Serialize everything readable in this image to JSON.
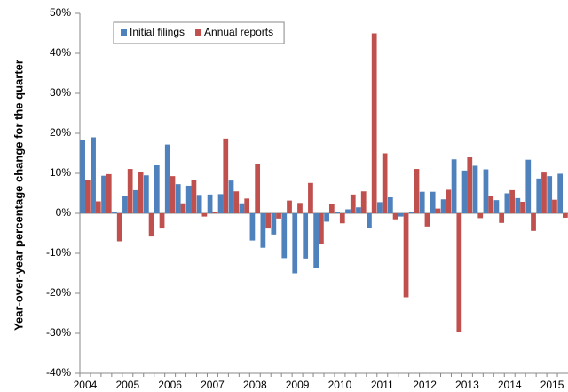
{
  "chart_data": {
    "type": "bar",
    "y_label": "Year-over-year percentage change for the quarter",
    "categories": [
      "2004",
      null,
      null,
      null,
      "2005",
      null,
      null,
      null,
      "2006",
      null,
      null,
      null,
      "2007",
      null,
      null,
      null,
      "2008",
      null,
      null,
      null,
      "2009",
      null,
      null,
      null,
      "2010",
      null,
      null,
      null,
      "2011",
      null,
      null,
      null,
      "2012",
      null,
      null,
      null,
      "2013",
      null,
      null,
      null,
      "2014",
      null,
      null,
      null,
      "2015",
      null
    ],
    "series": [
      {
        "name": "Initial filings",
        "color": "#4f81bd",
        "values": [
          18.3,
          19,
          9.4,
          0.3,
          4.4,
          5.8,
          9.5,
          12,
          17.2,
          7.3,
          6.9,
          4.6,
          4.7,
          4.8,
          8.2,
          2.5,
          -6.8,
          -8.6,
          -5.3,
          -11.2,
          -15,
          -11.3,
          -13.7,
          -2.1,
          0.3,
          1,
          1.5,
          -3.7,
          2.8,
          4,
          -0.8,
          0.3,
          5.4,
          5.4,
          3.5,
          13.5,
          10.7,
          11.9,
          11,
          3.3,
          5,
          3.8,
          13.4,
          8.7,
          9.3,
          9.9
        ]
      },
      {
        "name": "Annual reports",
        "color": "#c0504d",
        "values": [
          8.4,
          3,
          9.8,
          -7,
          11.1,
          10.3,
          -5.8,
          -3.8,
          9.3,
          2.5,
          8.4,
          -0.8,
          0.4,
          18.7,
          5.5,
          3.7,
          12.3,
          -3.8,
          -1.3,
          3.2,
          2.6,
          7.6,
          -7.7,
          2.4,
          -2.5,
          4.7,
          5.5,
          45,
          15,
          -1.5,
          -21,
          11.1,
          -3.3,
          1.2,
          5.9,
          -29.7,
          14,
          -1.2,
          4.3,
          -2.4,
          5.8,
          2.9,
          -4.4,
          10.2,
          3.4,
          -1.1
        ]
      }
    ],
    "ylim": [
      -40,
      50
    ],
    "yticks": [
      {
        "value": -40,
        "label": "-40%"
      },
      {
        "value": -30,
        "label": "-30%"
      },
      {
        "value": -20,
        "label": "-20%"
      },
      {
        "value": -10,
        "label": "-10%"
      },
      {
        "value": 0,
        "label": "0%"
      },
      {
        "value": 10,
        "label": "10%"
      },
      {
        "value": 20,
        "label": "20%"
      },
      {
        "value": 30,
        "label": "30%"
      },
      {
        "value": 40,
        "label": "40%"
      },
      {
        "value": 50,
        "label": "50%"
      }
    ],
    "legend": "upper left"
  }
}
